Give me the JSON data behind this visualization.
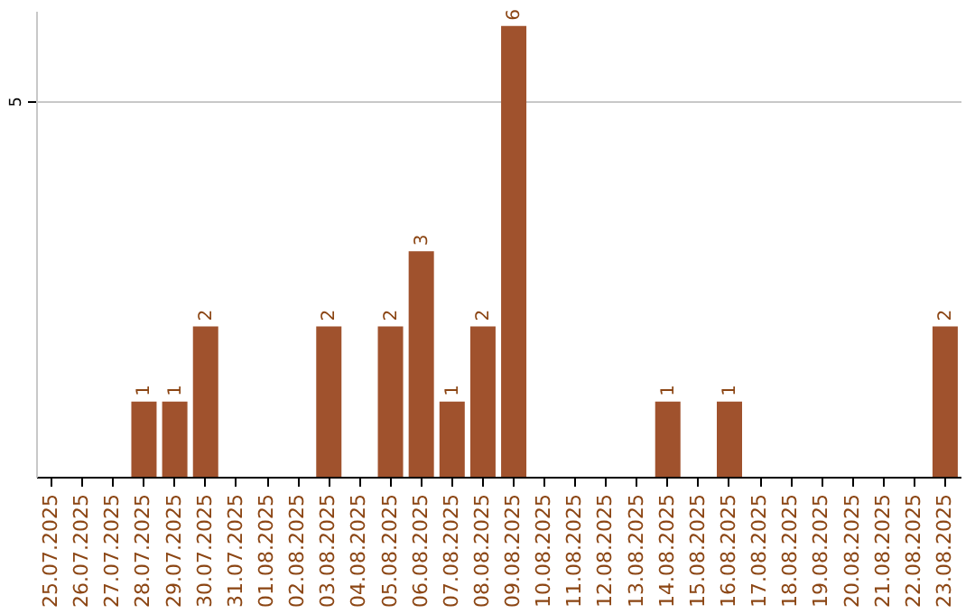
{
  "chart_data": {
    "type": "bar",
    "categories": [
      "25.07.2025",
      "26.07.2025",
      "27.07.2025",
      "28.07.2025",
      "29.07.2025",
      "30.07.2025",
      "31.07.2025",
      "01.08.2025",
      "02.08.2025",
      "03.08.2025",
      "04.08.2025",
      "05.08.2025",
      "06.08.2025",
      "07.08.2025",
      "08.08.2025",
      "09.08.2025",
      "10.08.2025",
      "11.08.2025",
      "12.08.2025",
      "13.08.2025",
      "14.08.2025",
      "15.08.2025",
      "16.08.2025",
      "17.08.2025",
      "18.08.2025",
      "19.08.2025",
      "20.08.2025",
      "21.08.2025",
      "22.08.2025",
      "23.08.2025"
    ],
    "values": [
      0,
      0,
      0,
      1,
      1,
      2,
      0,
      0,
      0,
      2,
      0,
      2,
      3,
      1,
      2,
      6,
      0,
      0,
      0,
      0,
      1,
      0,
      1,
      0,
      0,
      0,
      0,
      0,
      0,
      2
    ],
    "value_labels": [
      null,
      null,
      null,
      "1",
      "1",
      "2",
      null,
      null,
      null,
      "2",
      null,
      "2",
      "3",
      "1",
      "2",
      "6",
      null,
      null,
      null,
      null,
      "1",
      null,
      "1",
      null,
      null,
      null,
      null,
      null,
      null,
      "2"
    ],
    "color": "#a0522d",
    "ylim": [
      0,
      6.2
    ],
    "yticks": [
      5
    ],
    "grid": "y"
  }
}
